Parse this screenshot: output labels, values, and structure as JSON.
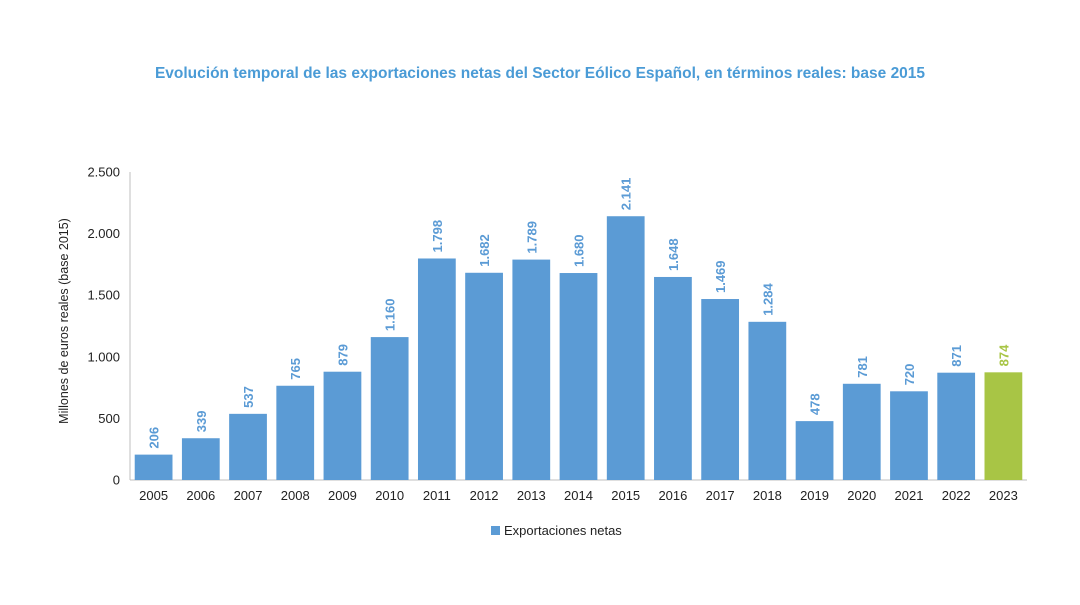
{
  "chart_data": {
    "type": "bar",
    "title": "Evolución temporal de las exportaciones netas del Sector Eólico Español, en términos reales: base 2015",
    "xlabel": "",
    "ylabel": "Millones de euros reales (base 2015)",
    "categories": [
      "2005",
      "2006",
      "2007",
      "2008",
      "2009",
      "2010",
      "2011",
      "2012",
      "2013",
      "2014",
      "2015",
      "2016",
      "2017",
      "2018",
      "2019",
      "2020",
      "2021",
      "2022",
      "2023"
    ],
    "series": [
      {
        "name": "Exportaciones netas",
        "values": [
          206,
          339,
          537,
          765,
          879,
          1160,
          1798,
          1682,
          1789,
          1680,
          2141,
          1648,
          1469,
          1284,
          478,
          781,
          720,
          871,
          874
        ]
      }
    ],
    "data_labels": [
      "206",
      "339",
      "537",
      "765",
      "879",
      "1.160",
      "1.798",
      "1.682",
      "1.789",
      "1.680",
      "2.141",
      "1.648",
      "1.469",
      "1.284",
      "478",
      "781",
      "720",
      "871",
      "874"
    ],
    "ylim": [
      0,
      2500
    ],
    "y_ticks": [
      0,
      500,
      1000,
      1500,
      2000,
      2500
    ],
    "y_tick_labels": [
      "0",
      "500",
      "1.000",
      "1.500",
      "2.000",
      "2.500"
    ],
    "grid": false,
    "legend_position": "bottom",
    "highlight_category": "2023",
    "colors": {
      "bar": "#5b9bd5",
      "bar_highlight": "#a8c545",
      "title": "#4a9bd6",
      "axis": "#bfbfbf",
      "text": "#222222"
    }
  }
}
